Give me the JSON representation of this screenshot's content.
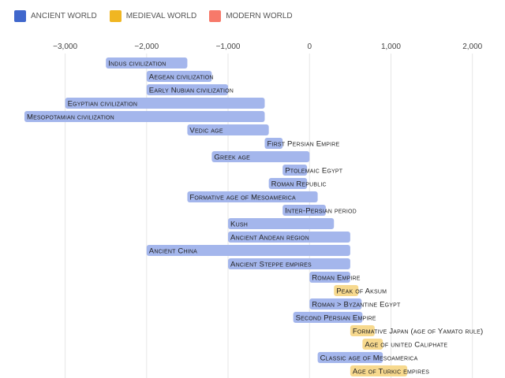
{
  "legend": [
    {
      "label": "ANCIENT WORLD",
      "color": "#4067cc"
    },
    {
      "label": "MEDIEVAL WORLD",
      "color": "#f0b622"
    },
    {
      "label": "MODERN WORLD",
      "color": "#f7796a"
    }
  ],
  "chart_data": {
    "type": "bar",
    "orientation": "horizontal-timeline",
    "title": "",
    "xlabel": "",
    "ylabel": "",
    "xlim": [
      -3800,
      2400
    ],
    "xticks": [
      -3000,
      -2000,
      -1000,
      0,
      1000,
      2000
    ],
    "xtick_labels": [
      "−3,000",
      "−2,000",
      "−1,000",
      "0",
      "1,000",
      "2,000"
    ],
    "grid": true,
    "legend_position": "top-left",
    "series_colors": {
      "ancient": "#a4b6ec",
      "medieval": "#f7d98e"
    },
    "bars": [
      {
        "label": "Indus civilization",
        "start": -2500,
        "end": -1500,
        "era": "ancient"
      },
      {
        "label": "Aegean civilization",
        "start": -2000,
        "end": -1200,
        "era": "ancient"
      },
      {
        "label": "Early Nubian civilization",
        "start": -2000,
        "end": -1000,
        "era": "ancient"
      },
      {
        "label": "Egyptian civilization",
        "start": -3000,
        "end": -550,
        "era": "ancient"
      },
      {
        "label": "Mesopotamian civilization",
        "start": -3500,
        "end": -550,
        "era": "ancient"
      },
      {
        "label": "Vedic age",
        "start": -1500,
        "end": -500,
        "era": "ancient"
      },
      {
        "label": "First Persian Empire",
        "start": -550,
        "end": -330,
        "era": "ancient"
      },
      {
        "label": "Greek age",
        "start": -1200,
        "end": 0,
        "era": "ancient"
      },
      {
        "label": "Ptolemaic Egypt",
        "start": -330,
        "end": -30,
        "era": "ancient"
      },
      {
        "label": "Roman Republic",
        "start": -500,
        "end": -30,
        "era": "ancient"
      },
      {
        "label": "Formative age of Mesoamerica",
        "start": -1500,
        "end": 100,
        "era": "ancient"
      },
      {
        "label": "Inter-Persian period",
        "start": -330,
        "end": 200,
        "era": "ancient"
      },
      {
        "label": "Kush",
        "start": -1000,
        "end": 300,
        "era": "ancient"
      },
      {
        "label": "Ancient Andean region",
        "start": -1000,
        "end": 500,
        "era": "ancient"
      },
      {
        "label": "Ancient China",
        "start": -2000,
        "end": 500,
        "era": "ancient"
      },
      {
        "label": "Ancient Steppe empires",
        "start": -1000,
        "end": 500,
        "era": "ancient"
      },
      {
        "label": "Roman Empire",
        "start": 0,
        "end": 500,
        "era": "ancient"
      },
      {
        "label": "Peak of Aksum",
        "start": 300,
        "end": 600,
        "era": "medieval"
      },
      {
        "label": "Roman > Byzantine Egypt",
        "start": 0,
        "end": 640,
        "era": "ancient"
      },
      {
        "label": "Second Persian Empire",
        "start": -200,
        "end": 650,
        "era": "ancient"
      },
      {
        "label": "Formative Japan (age of Yamato rule)",
        "start": 500,
        "end": 800,
        "era": "medieval"
      },
      {
        "label": "Age of united Caliphate",
        "start": 650,
        "end": 900,
        "era": "medieval"
      },
      {
        "label": "Classic age of Mesoamerica",
        "start": 100,
        "end": 900,
        "era": "ancient"
      },
      {
        "label": "Age of Turkic empires",
        "start": 500,
        "end": 1200,
        "era": "medieval"
      }
    ]
  }
}
